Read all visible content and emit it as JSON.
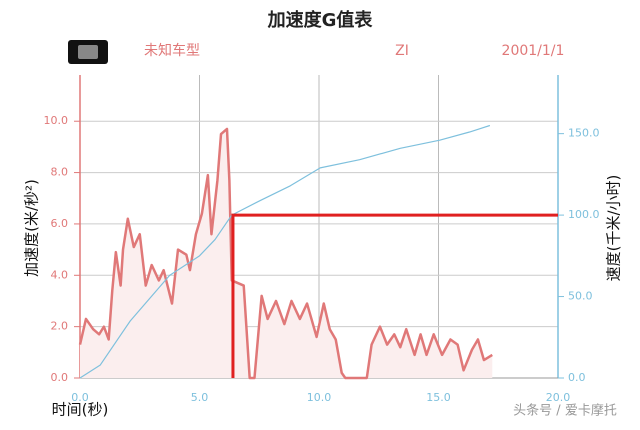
{
  "chart_data": {
    "type": "line",
    "title": "加速度G值表",
    "header": [
      "未知车型",
      "ZI",
      "2001/1/1"
    ],
    "xlabel": "时间(秒)",
    "ylabel": "加速度(米/秒²)",
    "y2label": "速度(千米/小时)",
    "watermark": "头条号 / 爱卡摩托",
    "xlim": [
      0,
      20
    ],
    "xticks": [
      {
        "value": 0,
        "label": "0.0"
      },
      {
        "value": 5,
        "label": "5.0"
      },
      {
        "value": 10,
        "label": "10.0"
      },
      {
        "value": 15,
        "label": "15.0"
      },
      {
        "value": 20,
        "label": "20.0"
      }
    ],
    "ylim": [
      0,
      11.8
    ],
    "yticks": [
      {
        "value": 0,
        "label": "0.0"
      },
      {
        "value": 2,
        "label": "2.0"
      },
      {
        "value": 4,
        "label": "4.0"
      },
      {
        "value": 6,
        "label": "6.0"
      },
      {
        "value": 8,
        "label": "8.0"
      },
      {
        "value": 10,
        "label": "10.0"
      }
    ],
    "y2lim": [
      0,
      186
    ],
    "y2ticks": [
      {
        "value": 0,
        "label": "0.0"
      },
      {
        "value": 50,
        "label": "50.0"
      },
      {
        "value": 100,
        "label": "100.0"
      },
      {
        "value": 150,
        "label": "150.0"
      }
    ],
    "grid": true,
    "marker": {
      "x": 6.4,
      "y2": 100,
      "color": "#e02020"
    },
    "series": [
      {
        "color": "#e07878",
        "fill": "#fbeeee",
        "x": [
          0,
          0.25,
          0.55,
          0.8,
          1.0,
          1.2,
          1.35,
          1.5,
          1.7,
          1.8,
          2.0,
          2.25,
          2.5,
          2.75,
          3.0,
          3.3,
          3.5,
          3.85,
          4.1,
          4.45,
          4.6,
          4.85,
          5.1,
          5.35,
          5.5,
          5.75,
          5.9,
          6.15,
          6.25,
          6.35,
          6.85,
          7.1,
          7.3,
          7.6,
          7.85,
          8.2,
          8.55,
          8.85,
          9.2,
          9.5,
          9.9,
          10.2,
          10.45,
          10.7,
          10.95,
          11.1,
          12.0,
          12.2,
          12.55,
          12.85,
          13.15,
          13.4,
          13.65,
          14.0,
          14.25,
          14.5,
          14.8,
          15.15,
          15.5,
          15.8,
          16.05,
          16.4,
          16.65,
          16.9,
          17.25
        ],
        "values": [
          1.3,
          2.3,
          1.9,
          1.7,
          2.0,
          1.5,
          3.4,
          4.9,
          3.6,
          5.0,
          6.2,
          5.1,
          5.6,
          3.6,
          4.4,
          3.8,
          4.2,
          2.9,
          5.0,
          4.8,
          4.2,
          5.6,
          6.4,
          7.9,
          5.6,
          7.7,
          9.5,
          9.7,
          7.7,
          3.8,
          3.6,
          0,
          0,
          3.2,
          2.3,
          3.0,
          2.1,
          3.0,
          2.3,
          2.9,
          1.6,
          2.9,
          1.9,
          1.5,
          0.2,
          0,
          0,
          1.3,
          2.0,
          1.3,
          1.7,
          1.2,
          1.9,
          0.9,
          1.7,
          0.9,
          1.7,
          0.9,
          1.5,
          1.3,
          0.3,
          1.1,
          1.5,
          0.7,
          0.9
        ]
      },
      {
        "color": "#7ec0dd",
        "axis": "y2",
        "x": [
          0,
          0.85,
          2.1,
          3.75,
          5.0,
          5.65,
          6.35,
          7.55,
          8.8,
          10.05,
          11.7,
          13.4,
          15.05,
          16.3,
          17.15
        ],
        "values": [
          0,
          8,
          35,
          63,
          75,
          85,
          100,
          109,
          118,
          129,
          134,
          141,
          146,
          151,
          155
        ]
      }
    ]
  }
}
